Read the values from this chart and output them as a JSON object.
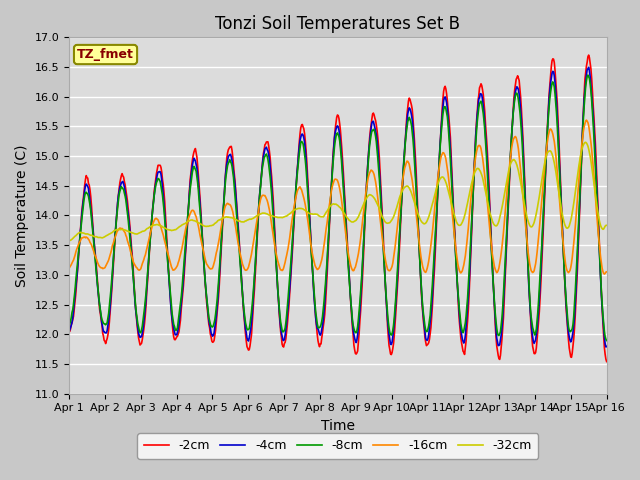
{
  "title": "Tonzi Soil Temperatures Set B",
  "xlabel": "Time",
  "ylabel": "Soil Temperature (C)",
  "ylim": [
    11.0,
    17.0
  ],
  "yticks": [
    11.0,
    11.5,
    12.0,
    12.5,
    13.0,
    13.5,
    14.0,
    14.5,
    15.0,
    15.5,
    16.0,
    16.5,
    17.0
  ],
  "xtick_labels": [
    "Apr 1",
    "Apr 2",
    "Apr 3",
    "Apr 4",
    "Apr 5",
    "Apr 6",
    "Apr 7",
    "Apr 8",
    "Apr 9",
    "Apr 10",
    "Apr 11",
    "Apr 12",
    "Apr 13",
    "Apr 14",
    "Apr 15",
    "Apr 16"
  ],
  "series_labels": [
    "-2cm",
    "-4cm",
    "-8cm",
    "-16cm",
    "-32cm"
  ],
  "series_colors": [
    "#ff0000",
    "#0000cc",
    "#009900",
    "#ff8800",
    "#cccc00"
  ],
  "line_width": 1.2,
  "bg_color": "#dcdcdc",
  "fig_color": "#c8c8c8",
  "legend_label": "TZ_fmet",
  "legend_bg": "#ffff99",
  "legend_border": "#888800",
  "legend_text_color": "#880000",
  "title_fontsize": 12,
  "axis_label_fontsize": 10,
  "tick_fontsize": 8
}
